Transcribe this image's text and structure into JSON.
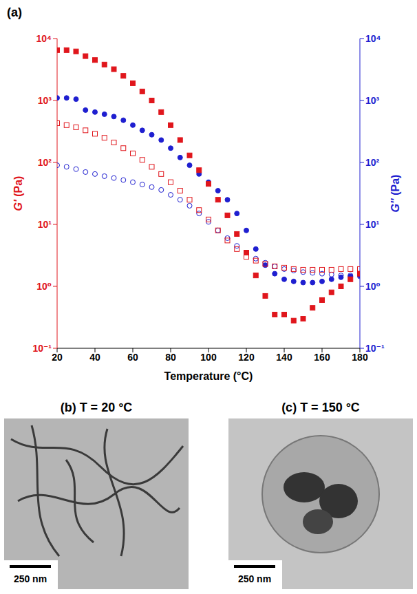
{
  "chart_data": {
    "type": "scatter",
    "title": "(a)",
    "x_label": "Temperature (°C)",
    "y_label": "G' (Pa)",
    "y2_label": "G'' (Pa)",
    "log": "y",
    "grid": false,
    "x": [
      20,
      25,
      30,
      35,
      40,
      45,
      50,
      55,
      60,
      65,
      70,
      75,
      80,
      85,
      90,
      95,
      100,
      105,
      110,
      115,
      120,
      125,
      130,
      135,
      140,
      145,
      150,
      155,
      160,
      165,
      170,
      175,
      180
    ],
    "xlim": [
      20,
      180
    ],
    "xticks": [
      20,
      40,
      60,
      80,
      100,
      120,
      140,
      160,
      180
    ],
    "ylim": [
      0.1,
      10000
    ],
    "yticks": [
      {
        "value": 0.1,
        "label": "10⁻¹"
      },
      {
        "value": 1,
        "label": "10⁰"
      },
      {
        "value": 10,
        "label": "10¹"
      },
      {
        "value": 100,
        "label": "10²"
      },
      {
        "value": 1000,
        "label": "10³"
      },
      {
        "value": 10000,
        "label": "10⁴"
      }
    ],
    "y2lim": [
      0.1,
      10000
    ],
    "y2ticks": [
      {
        "value": 0.1,
        "label": "10⁻¹"
      },
      {
        "value": 1,
        "label": "10⁰"
      },
      {
        "value": 10,
        "label": "10¹"
      },
      {
        "value": 100,
        "label": "10²"
      },
      {
        "value": 1000,
        "label": "10³"
      },
      {
        "value": 10000,
        "label": "10⁴"
      }
    ],
    "series": [
      {
        "color": "#1f1fd0",
        "marker": "filled_circle",
        "axis": "y2",
        "values": [
          1100,
          1100,
          1050,
          700,
          650,
          600,
          550,
          480,
          400,
          330,
          280,
          230,
          170,
          120,
          90,
          65,
          48,
          35,
          25,
          15,
          8,
          4,
          2.2,
          1.6,
          1.3,
          1.2,
          1.15,
          1.15,
          1.2,
          1.3,
          1.4,
          1.45,
          1.5
        ]
      },
      {
        "color": "#1f1fd0",
        "marker": "open_circle",
        "axis": "y2",
        "values": [
          90,
          85,
          78,
          70,
          65,
          60,
          56,
          52,
          48,
          44,
          40,
          36,
          30,
          25,
          20,
          15,
          11,
          8,
          6,
          4.5,
          3.5,
          2.8,
          2.4,
          2.1,
          1.9,
          1.8,
          1.7,
          1.65,
          1.6,
          1.55,
          1.5,
          1.5,
          1.45
        ]
      },
      {
        "color": "#e0161c",
        "marker": "open_square",
        "axis": "y",
        "values": [
          430,
          400,
          370,
          330,
          290,
          250,
          210,
          170,
          140,
          110,
          85,
          65,
          48,
          35,
          25,
          17,
          12,
          8,
          5.5,
          4,
          3,
          2.6,
          2.3,
          2.1,
          2.0,
          1.9,
          1.85,
          1.85,
          1.85,
          1.85,
          1.9,
          1.9,
          1.9
        ]
      },
      {
        "color": "#e0161c",
        "marker": "filled_square",
        "axis": "y",
        "values": [
          6500,
          6500,
          6200,
          5200,
          4500,
          3800,
          3200,
          2500,
          1900,
          1400,
          1000,
          650,
          400,
          230,
          130,
          75,
          45,
          25,
          14,
          7,
          3.5,
          1.5,
          0.7,
          0.35,
          0.35,
          0.28,
          0.3,
          0.45,
          0.6,
          0.8,
          1.0,
          1.3,
          1.6
        ]
      }
    ]
  },
  "images": [
    {
      "label": "(b) T = 20 °C",
      "scale_bar": "250 nm"
    },
    {
      "label": "(c) T = 150 °C",
      "scale_bar": "250 nm"
    }
  ]
}
